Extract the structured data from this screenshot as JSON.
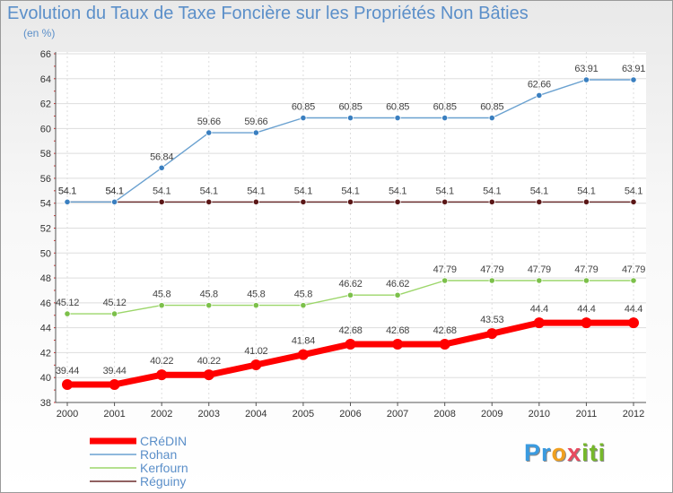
{
  "header": {
    "title": "Evolution du Taux de Taxe Foncière sur les Propriétés Non Bâties",
    "unit": "(en %)"
  },
  "logo": {
    "text": "Proxiti",
    "colors": [
      "#3a9be0",
      "#f0a020",
      "#e84a5f",
      "#76b82a"
    ]
  },
  "chart_data": {
    "type": "line",
    "title": "Evolution du Taux de Taxe Foncière sur les Propriétés Non Bâties",
    "ylabel": "(en %)",
    "xlabel": "",
    "x": [
      "2000",
      "2001",
      "2002",
      "2003",
      "2004",
      "2005",
      "2006",
      "2007",
      "2008",
      "2009",
      "2010",
      "2011",
      "2012"
    ],
    "ylim": [
      38,
      66
    ],
    "yticks": [
      38,
      40,
      42,
      44,
      46,
      48,
      50,
      52,
      54,
      56,
      58,
      60,
      62,
      64,
      66
    ],
    "grid": true,
    "legend_position": "bottom-left",
    "series": [
      {
        "name": "Réguiny",
        "color": "#6b2d2d",
        "point_color": "#5a1616",
        "width": 1.4,
        "values": [
          54.1,
          54.1,
          54.1,
          54.1,
          54.1,
          54.1,
          54.1,
          54.1,
          54.1,
          54.1,
          54.1,
          54.1,
          54.1
        ],
        "labels": [
          "54.1",
          "54.1",
          "54.1",
          "54.1",
          "54.1",
          "54.1",
          "54.1",
          "54.1",
          "54.1",
          "54.1",
          "54.1",
          "54.1",
          "54.1"
        ]
      },
      {
        "name": "Rohan",
        "color": "#6aa1d0",
        "point_color": "#3a7fc0",
        "width": 1.4,
        "values": [
          54.1,
          54.1,
          56.84,
          59.66,
          59.66,
          60.85,
          60.85,
          60.85,
          60.85,
          60.85,
          62.66,
          63.91,
          63.91
        ],
        "labels": [
          "54.1",
          "54.1",
          "56.84",
          "59.66",
          "59.66",
          "60.85",
          "60.85",
          "60.85",
          "60.85",
          "60.85",
          "62.66",
          "63.91",
          "63.91"
        ]
      },
      {
        "name": "Kerfourn",
        "color": "#9cd66a",
        "point_color": "#7cc04a",
        "width": 1.4,
        "values": [
          45.12,
          45.12,
          45.8,
          45.8,
          45.8,
          45.8,
          46.62,
          46.62,
          47.79,
          47.79,
          47.79,
          47.79,
          47.79
        ],
        "labels": [
          "45.12",
          "45.12",
          "45.8",
          "45.8",
          "45.8",
          "45.8",
          "46.62",
          "46.62",
          "47.79",
          "47.79",
          "47.79",
          "47.79",
          "47.79"
        ]
      },
      {
        "name": "CRéDIN",
        "color": "#ff0000",
        "point_color": "#ff0000",
        "width": 7,
        "values": [
          39.44,
          39.44,
          40.22,
          40.22,
          41.02,
          41.84,
          42.68,
          42.68,
          42.68,
          43.53,
          44.4,
          44.4,
          44.4
        ],
        "labels": [
          "39.44",
          "39.44",
          "40.22",
          "40.22",
          "41.02",
          "41.84",
          "42.68",
          "42.68",
          "42.68",
          "43.53",
          "44.4",
          "44.4",
          "44.4"
        ]
      }
    ],
    "legend": [
      {
        "name": "CRéDIN",
        "color": "#ff0000",
        "width": 7
      },
      {
        "name": "Rohan",
        "color": "#6aa1d0",
        "width": 1.5
      },
      {
        "name": "Kerfourn",
        "color": "#9cd66a",
        "width": 1.5
      },
      {
        "name": "Réguiny",
        "color": "#6b2d2d",
        "width": 1.5
      }
    ]
  }
}
